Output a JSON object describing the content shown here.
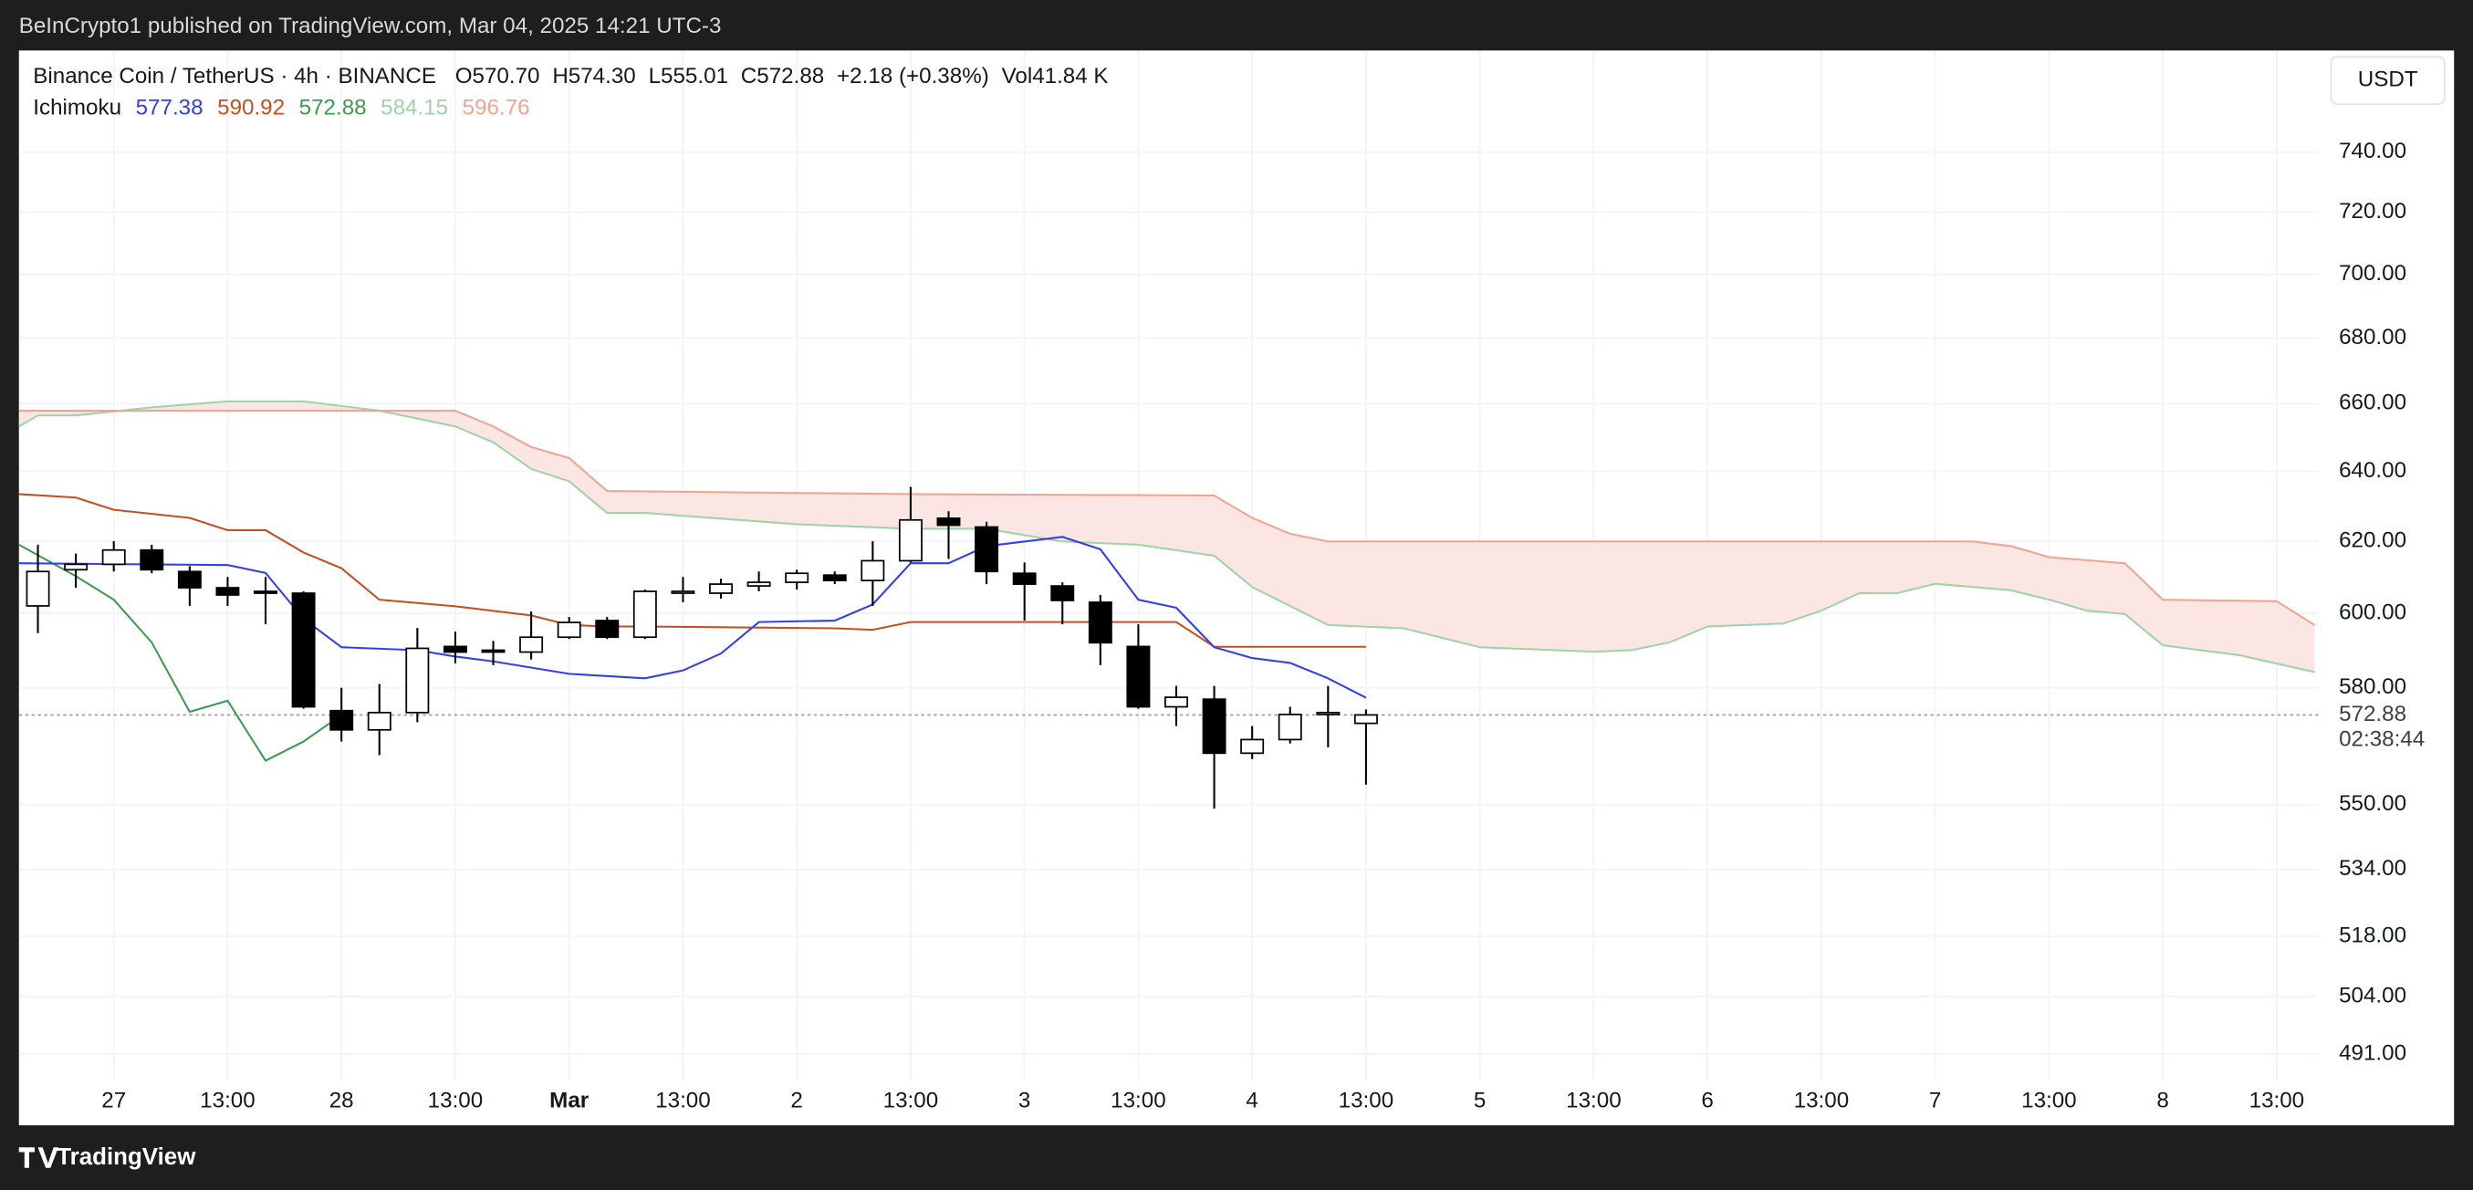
{
  "header": {
    "publisher": "BeInCrypto1 published on TradingView.com, Mar 04, 2025 14:21 UTC-3"
  },
  "footer": {
    "brand": "TradingView"
  },
  "chart_data": {
    "type": "candlestick",
    "symbol": "Binance Coin / TetherUS · 4h · BINANCE",
    "ohlc_legend": [
      "O570.70",
      "H574.30",
      "L555.01",
      "C572.88",
      "+2.18 (+0.38%)",
      "Vol41.84 K"
    ],
    "indicator": "Ichimoku",
    "currency": "USDT",
    "countdown": "02:38:44",
    "last_price": 572.88,
    "log_scale": true,
    "grid": true,
    "xlim": [
      -0.5,
      60.1
    ],
    "ylim": [
      485,
      775
    ],
    "xticks": [
      {
        "value": 2,
        "label": "27"
      },
      {
        "value": 5,
        "label": "13:00"
      },
      {
        "value": 8,
        "label": "28"
      },
      {
        "value": 11,
        "label": "13:00"
      },
      {
        "value": 14,
        "label": "Mar"
      },
      {
        "value": 17,
        "label": "13:00"
      },
      {
        "value": 20,
        "label": "2"
      },
      {
        "value": 23,
        "label": "13:00"
      },
      {
        "value": 26,
        "label": "3"
      },
      {
        "value": 29,
        "label": "13:00"
      },
      {
        "value": 32,
        "label": "4"
      },
      {
        "value": 35,
        "label": "13:00"
      },
      {
        "value": 38,
        "label": "5"
      },
      {
        "value": 41,
        "label": "13:00"
      },
      {
        "value": 44,
        "label": "6"
      },
      {
        "value": 47,
        "label": "13:00"
      },
      {
        "value": 50,
        "label": "7"
      },
      {
        "value": 53,
        "label": "13:00"
      },
      {
        "value": 56,
        "label": "8"
      },
      {
        "value": 59,
        "label": "13:00"
      }
    ],
    "yticks": [
      {
        "value": 740,
        "label": "740.00"
      },
      {
        "value": 720,
        "label": "720.00"
      },
      {
        "value": 700,
        "label": "700.00"
      },
      {
        "value": 680,
        "label": "680.00"
      },
      {
        "value": 660,
        "label": "660.00"
      },
      {
        "value": 640,
        "label": "640.00"
      },
      {
        "value": 620,
        "label": "620.00"
      },
      {
        "value": 600,
        "label": "600.00"
      },
      {
        "value": 580,
        "label": "580.00"
      },
      {
        "value": 550,
        "label": "550.00"
      },
      {
        "value": 534,
        "label": "534.00"
      },
      {
        "value": 518,
        "label": "518.00"
      },
      {
        "value": 504,
        "label": "504.00"
      },
      {
        "value": 491,
        "label": "491.00"
      }
    ],
    "candles": {
      "up_color": "#ffffff",
      "down_color": "#000000",
      "border_color": "#000000",
      "x": [
        0,
        1,
        2,
        3,
        4,
        5,
        6,
        7,
        8,
        9,
        10,
        11,
        12,
        13,
        14,
        15,
        16,
        17,
        18,
        19,
        20,
        21,
        22,
        23,
        24,
        25,
        26,
        27,
        28,
        29,
        30,
        31,
        32,
        33,
        34,
        35
      ],
      "open": [
        602,
        612,
        613.5,
        617.5,
        611.5,
        607,
        606,
        605.5,
        574,
        569,
        573.5,
        591,
        590,
        589.5,
        593.5,
        598,
        593.5,
        605.5,
        605.5,
        607.5,
        608.5,
        610.5,
        609,
        614.5,
        626.5,
        624,
        611,
        607.5,
        603,
        591,
        575,
        577,
        563,
        566.5,
        573,
        570.7
      ],
      "high": [
        619,
        616.5,
        620,
        619,
        613,
        610,
        610,
        606,
        580,
        581,
        596,
        595,
        592.5,
        600.5,
        599,
        599,
        606.5,
        610,
        609.5,
        611.5,
        612,
        611.5,
        620,
        635.5,
        628.5,
        625.5,
        614,
        608.5,
        605,
        597,
        580.5,
        580.5,
        570,
        575,
        580.5,
        574.3
      ],
      "low": [
        594.6,
        607,
        611.5,
        611,
        602,
        602,
        597,
        574.5,
        566,
        562.5,
        571,
        586.5,
        586,
        587.5,
        593,
        593,
        593,
        603,
        604,
        606,
        606.5,
        608,
        602,
        614,
        615,
        608,
        598,
        597,
        586,
        574.5,
        570,
        549,
        561.5,
        565.5,
        564.5,
        555.01
      ],
      "close": [
        611.5,
        613.5,
        617.5,
        612,
        607,
        605,
        605.5,
        575,
        569,
        573.5,
        590.5,
        589.5,
        589.5,
        593.5,
        597.5,
        593.5,
        606,
        606,
        608,
        608.5,
        611,
        609,
        614.5,
        626,
        624.5,
        611.5,
        608,
        603.5,
        592,
        575,
        577.5,
        563,
        566.5,
        573,
        573.5,
        572.88
      ]
    },
    "cloud_color": "#fce6e3",
    "series": [
      {
        "color": "#3340e6",
        "x": [
          -0.5,
          5,
          6,
          7,
          8,
          10,
          11,
          12,
          14,
          16,
          17,
          18,
          19,
          21,
          22,
          23,
          24,
          25,
          27,
          28,
          29,
          30,
          31,
          32,
          33,
          34,
          35
        ],
        "values": [
          613.8,
          613.3,
          611.1,
          598.5,
          590.8,
          590.0,
          588.3,
          587.0,
          583.7,
          582.5,
          584.6,
          589.1,
          597.6,
          598.0,
          602.4,
          613.8,
          613.8,
          618.6,
          621.2,
          617.7,
          603.7,
          601.5,
          590.8,
          587.9,
          586.6,
          582.5,
          577.38
        ]
      },
      {
        "color": "#c4501f",
        "x": [
          -0.5,
          1,
          2,
          4,
          5,
          6,
          7,
          8,
          9,
          11,
          13,
          14,
          15,
          16,
          21,
          22,
          23,
          24,
          30,
          31,
          35
        ],
        "values": [
          633.4,
          632.4,
          628.9,
          626.6,
          623.1,
          623.1,
          616.8,
          612.4,
          603.7,
          601.9,
          599.4,
          596.8,
          596.4,
          596.4,
          595.9,
          595.5,
          597.6,
          597.6,
          597.6,
          590.92,
          590.92
        ]
      },
      {
        "color": "#3d9a4f",
        "x": [
          -0.5,
          1,
          2,
          3,
          4,
          5,
          6,
          7,
          8
        ],
        "values": [
          619.0,
          610.2,
          603.7,
          592.1,
          573.7,
          576.6,
          561.1,
          566.0,
          572.88
        ]
      },
      {
        "color": "#9fd3aa",
        "x": [
          -0.5,
          0,
          1,
          3,
          5,
          7,
          9,
          11,
          12,
          13,
          14,
          15,
          16,
          20,
          23,
          25,
          27,
          29,
          31,
          32,
          34,
          36,
          38,
          41,
          42,
          43,
          44,
          46,
          47,
          48,
          49,
          50,
          52,
          53,
          54,
          55,
          56,
          58,
          60
        ],
        "values": [
          653.2,
          656.5,
          656.5,
          658.9,
          660.7,
          660.7,
          657.9,
          653.2,
          648.5,
          640.7,
          637.1,
          628.0,
          628.0,
          624.8,
          623.5,
          623.5,
          619.9,
          619.0,
          615.9,
          607.2,
          596.8,
          595.9,
          590.8,
          589.6,
          590.0,
          592.1,
          596.4,
          597.2,
          600.7,
          605.5,
          605.5,
          608.1,
          606.3,
          603.7,
          600.7,
          599.8,
          591.3,
          588.7,
          584.15
        ]
      },
      {
        "color": "#f0a592",
        "x": [
          -0.5,
          11,
          12,
          13,
          14,
          15,
          23,
          31,
          32,
          33,
          34,
          51,
          52,
          53,
          55,
          56,
          59,
          60
        ],
        "values": [
          657.9,
          657.9,
          653.2,
          647.1,
          643.9,
          634.3,
          633.4,
          633.0,
          626.6,
          622.1,
          619.9,
          619.9,
          618.6,
          615.5,
          613.8,
          603.7,
          603.3,
          596.76
        ]
      }
    ]
  }
}
